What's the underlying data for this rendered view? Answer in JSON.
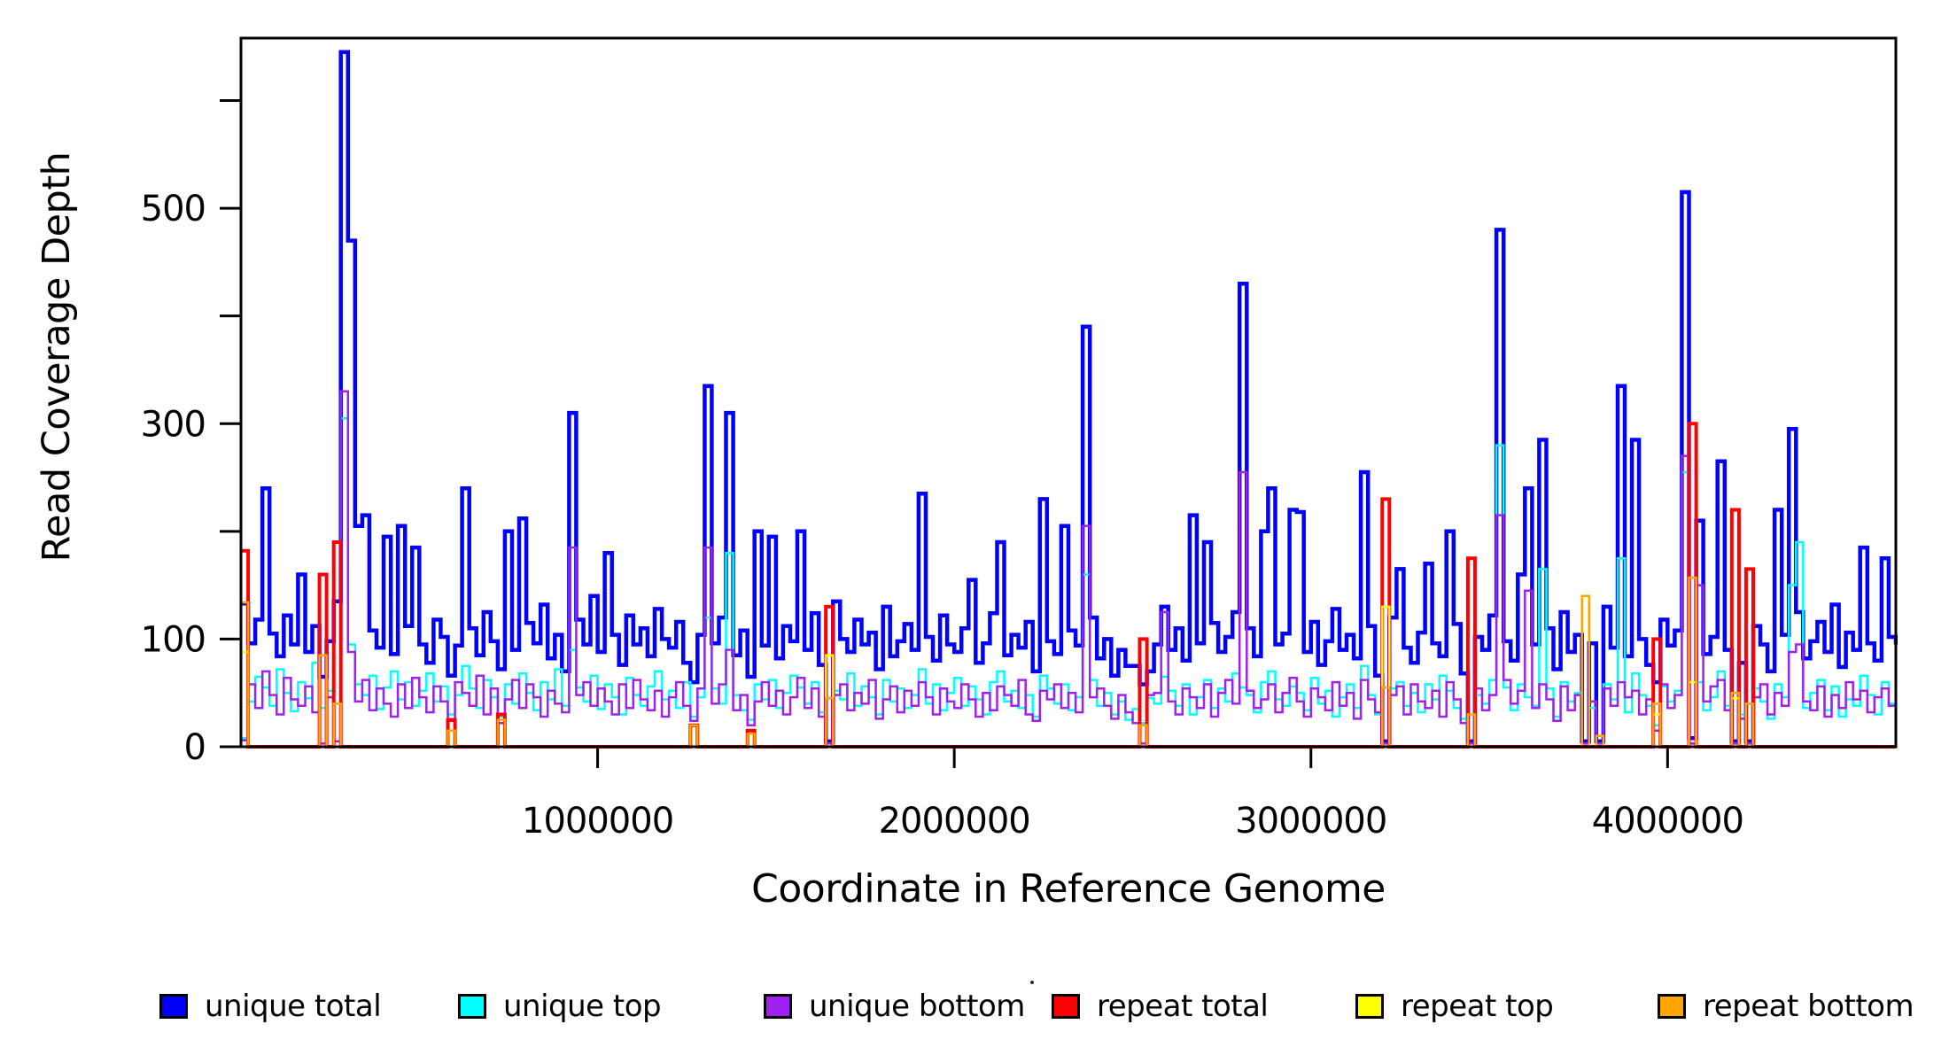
{
  "chart_data": {
    "type": "line",
    "subtype": "step-post",
    "title": "",
    "xlabel": "Coordinate in Reference Genome",
    "ylabel": "Read Coverage Depth",
    "xlim": [
      0,
      4640000
    ],
    "ylim": [
      0,
      658
    ],
    "grid": false,
    "background": "#ffffff",
    "axis_color": "#000000",
    "bin_size": 20000,
    "n_bins": 233,
    "x_ticks": [
      {
        "value": 1000000,
        "label": "1000000"
      },
      {
        "value": 2000000,
        "label": "2000000"
      },
      {
        "value": 3000000,
        "label": "3000000"
      },
      {
        "value": 4000000,
        "label": "4000000"
      }
    ],
    "y_ticks": [
      {
        "value": 0,
        "label": "0"
      },
      {
        "value": 100,
        "label": "100"
      },
      {
        "value": 200,
        "label": ""
      },
      {
        "value": 300,
        "label": "300"
      },
      {
        "value": 400,
        "label": ""
      },
      {
        "value": 500,
        "label": "500"
      },
      {
        "value": 600,
        "label": ""
      }
    ],
    "series": [
      {
        "name": "unique total",
        "color": "#0000ff",
        "line_width": 4.5,
        "encoding": "dense",
        "values": [
          133,
          96,
          118,
          240,
          105,
          84,
          122,
          95,
          160,
          88,
          112,
          65,
          98,
          135,
          645,
          470,
          205,
          215,
          108,
          92,
          195,
          86,
          205,
          112,
          185,
          95,
          78,
          118,
          102,
          66,
          94,
          240,
          110,
          85,
          125,
          98,
          72,
          200,
          90,
          212,
          115,
          96,
          132,
          82,
          104,
          70,
          310,
          118,
          95,
          140,
          88,
          180,
          104,
          76,
          122,
          95,
          110,
          84,
          128,
          100,
          92,
          116,
          78,
          60,
          104,
          335,
          96,
          120,
          310,
          85,
          108,
          65,
          200,
          94,
          195,
          82,
          112,
          98,
          200,
          90,
          124,
          76,
          5,
          135,
          100,
          88,
          118,
          95,
          106,
          72,
          130,
          84,
          98,
          114,
          90,
          235,
          102,
          80,
          122,
          95,
          88,
          110,
          155,
          78,
          96,
          124,
          190,
          85,
          104,
          92,
          116,
          70,
          230,
          98,
          86,
          205,
          108,
          94,
          390,
          120,
          82,
          100,
          66,
          90,
          75,
          75,
          58,
          70,
          95,
          130,
          90,
          110,
          80,
          215,
          96,
          190,
          115,
          88,
          102,
          125,
          430,
          110,
          84,
          200,
          240,
          95,
          105,
          220,
          218,
          88,
          116,
          76,
          98,
          128,
          90,
          104,
          82,
          255,
          112,
          66,
          5,
          120,
          165,
          92,
          78,
          106,
          170,
          96,
          84,
          200,
          114,
          68,
          5,
          102,
          90,
          122,
          480,
          98,
          80,
          160,
          240,
          95,
          285,
          110,
          72,
          125,
          88,
          104,
          5,
          96,
          5,
          130,
          92,
          335,
          84,
          285,
          100,
          76,
          60,
          118,
          94,
          108,
          515,
          8,
          210,
          86,
          102,
          265,
          90,
          5,
          78,
          5,
          112,
          95,
          70,
          220,
          104,
          295,
          125,
          82,
          98,
          116,
          88,
          132,
          74,
          106,
          90,
          185,
          96,
          80,
          175,
          102,
          95
        ]
      },
      {
        "name": "unique top",
        "color": "#00ffff",
        "line_width": 2.5,
        "encoding": "dense",
        "values": [
          8,
          42,
          65,
          55,
          38,
          72,
          50,
          33,
          60,
          45,
          78,
          36,
          52,
          40,
          305,
          95,
          58,
          48,
          66,
          35,
          55,
          70,
          44,
          60,
          38,
          52,
          68,
          42,
          56,
          30,
          48,
          75,
          54,
          36,
          62,
          46,
          28,
          58,
          40,
          68,
          50,
          34,
          60,
          44,
          72,
          38,
          90,
          55,
          42,
          66,
          35,
          58,
          46,
          30,
          64,
          48,
          38,
          56,
          70,
          44,
          52,
          36,
          60,
          28,
          46,
          120,
          54,
          40,
          180,
          48,
          34,
          25,
          58,
          44,
          62,
          36,
          50,
          66,
          55,
          40,
          60,
          32,
          3,
          52,
          44,
          68,
          38,
          56,
          46,
          30,
          62,
          42,
          54,
          36,
          48,
          72,
          40,
          58,
          34,
          50,
          64,
          38,
          56,
          44,
          30,
          60,
          70,
          42,
          52,
          36,
          48,
          28,
          66,
          54,
          40,
          58,
          34,
          46,
          160,
          62,
          38,
          50,
          30,
          42,
          25,
          35,
          22,
          45,
          40,
          65,
          52,
          38,
          58,
          30,
          46,
          62,
          36,
          54,
          42,
          68,
          55,
          48,
          32,
          60,
          70,
          44,
          38,
          56,
          50,
          34,
          64,
          40,
          52,
          28,
          46,
          58,
          36,
          75,
          48,
          30,
          3,
          54,
          60,
          38,
          50,
          32,
          58,
          44,
          66,
          52,
          36,
          26,
          3,
          48,
          40,
          62,
          280,
          55,
          34,
          58,
          46,
          38,
          165,
          54,
          28,
          60,
          42,
          50,
          3,
          36,
          3,
          58,
          44,
          175,
          32,
          68,
          48,
          38,
          20,
          56,
          42,
          52,
          255,
          3,
          60,
          34,
          46,
          70,
          38,
          3,
          30,
          3,
          54,
          42,
          26,
          58,
          46,
          150,
          190,
          36,
          50,
          62,
          34,
          56,
          28,
          44,
          38,
          66,
          48,
          30,
          60,
          40,
          45
        ]
      },
      {
        "name": "unique bottom",
        "color": "#a020f0",
        "line_width": 2.5,
        "encoding": "dense",
        "values": [
          6,
          58,
          36,
          70,
          48,
          30,
          64,
          44,
          38,
          56,
          32,
          3,
          46,
          5,
          330,
          88,
          42,
          62,
          34,
          54,
          40,
          28,
          58,
          36,
          64,
          46,
          32,
          56,
          42,
          24,
          60,
          50,
          38,
          66,
          30,
          54,
          22,
          44,
          62,
          36,
          58,
          46,
          28,
          52,
          40,
          32,
          185,
          48,
          60,
          38,
          54,
          42,
          30,
          58,
          36,
          62,
          44,
          34,
          52,
          28,
          46,
          60,
          38,
          24,
          54,
          185,
          40,
          58,
          90,
          34,
          48,
          20,
          42,
          60,
          38,
          52,
          30,
          46,
          64,
          36,
          54,
          28,
          3,
          48,
          58,
          34,
          50,
          40,
          62,
          26,
          44,
          56,
          32,
          52,
          38,
          60,
          46,
          30,
          54,
          42,
          36,
          58,
          44,
          28,
          50,
          34,
          56,
          48,
          38,
          62,
          30,
          24,
          52,
          44,
          58,
          36,
          50,
          32,
          205,
          46,
          54,
          38,
          26,
          48,
          32,
          22,
          3,
          48,
          50,
          125,
          42,
          30,
          54,
          46,
          36,
          58,
          28,
          50,
          62,
          40,
          255,
          52,
          36,
          44,
          58,
          32,
          50,
          64,
          42,
          28,
          54,
          46,
          34,
          60,
          38,
          50,
          26,
          62,
          44,
          32,
          3,
          48,
          56,
          30,
          58,
          42,
          36,
          52,
          28,
          60,
          44,
          22,
          3,
          54,
          34,
          48,
          215,
          62,
          40,
          52,
          145,
          36,
          58,
          44,
          24,
          56,
          34,
          48,
          3,
          42,
          3,
          54,
          38,
          60,
          46,
          52,
          30,
          44,
          15,
          58,
          36,
          48,
          270,
          3,
          150,
          42,
          56,
          62,
          34,
          3,
          26,
          3,
          46,
          58,
          30,
          50,
          38,
          88,
          95,
          42,
          34,
          56,
          28,
          48,
          36,
          60,
          44,
          52,
          32,
          46,
          54,
          38,
          42
        ]
      },
      {
        "name": "repeat total",
        "color": "#ff0000",
        "line_width": 4,
        "encoding": "sparse",
        "points": {
          "0": 182,
          "11": 160,
          "13": 190,
          "29": 25,
          "36": 30,
          "63": 20,
          "71": 15,
          "82": 130,
          "126": 100,
          "160": 230,
          "172": 175,
          "198": 100,
          "203": 300,
          "209": 220,
          "211": 165
        },
        "default": 0
      },
      {
        "name": "repeat top",
        "color": "#ffff00",
        "line_width": 2.5,
        "encoding": "sparse",
        "points": {
          "0": 88,
          "82": 85,
          "160": 130,
          "198": 30,
          "203": 60,
          "209": 45
        },
        "default": 0
      },
      {
        "name": "repeat bottom",
        "color": "#ffa500",
        "line_width": 2.5,
        "encoding": "sparse",
        "points": {
          "0": 134,
          "11": 85,
          "13": 40,
          "29": 15,
          "36": 25,
          "63": 20,
          "71": 12,
          "82": 45,
          "126": 20,
          "160": 55,
          "172": 30,
          "188": 140,
          "190": 10,
          "198": 40,
          "203": 157,
          "209": 50,
          "211": 40
        },
        "default": 0
      }
    ]
  },
  "legend": {
    "items": [
      {
        "label": "unique total",
        "color": "#0000ff"
      },
      {
        "label": "unique top",
        "color": "#00ffff"
      },
      {
        "label": "unique bottom",
        "color": "#a020f0"
      },
      {
        "label": "repeat total",
        "color": "#ff0000"
      },
      {
        "label": "repeat top",
        "color": "#ffff00"
      },
      {
        "label": "repeat bottom",
        "color": "#ffa500"
      }
    ]
  }
}
